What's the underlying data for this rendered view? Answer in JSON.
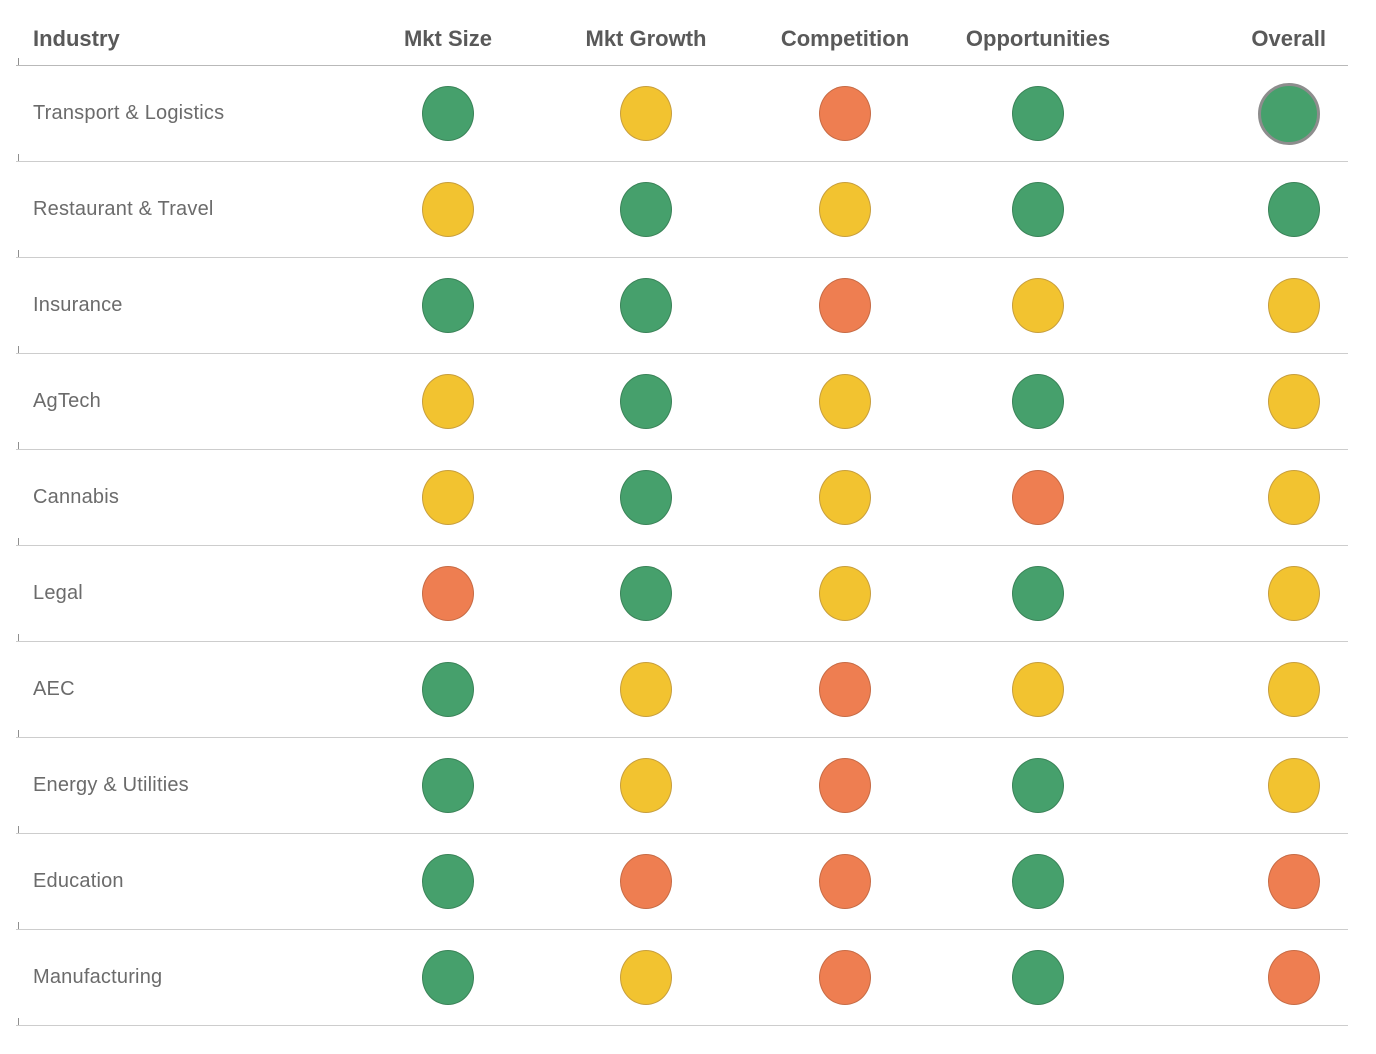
{
  "table": {
    "columns": [
      {
        "key": "industry",
        "label": "Industry"
      },
      {
        "key": "mkt_size",
        "label": "Mkt Size"
      },
      {
        "key": "mkt_growth",
        "label": "Mkt Growth"
      },
      {
        "key": "competition",
        "label": "Competition"
      },
      {
        "key": "opportunities",
        "label": "Opportunities"
      },
      {
        "key": "overall",
        "label": "Overall"
      }
    ],
    "rating_colors": {
      "good": "#46a06c",
      "medium": "#f2c330",
      "poor": "#ee7e51"
    },
    "highlight_ring_color": "#8d8d8d",
    "rows": [
      {
        "industry": "Transport & Logistics",
        "ratings": {
          "mkt_size": "good",
          "mkt_growth": "medium",
          "competition": "poor",
          "opportunities": "good",
          "overall": "good"
        },
        "overall_ring": true
      },
      {
        "industry": "Restaurant & Travel",
        "ratings": {
          "mkt_size": "medium",
          "mkt_growth": "good",
          "competition": "medium",
          "opportunities": "good",
          "overall": "good"
        },
        "overall_ring": false
      },
      {
        "industry": "Insurance",
        "ratings": {
          "mkt_size": "good",
          "mkt_growth": "good",
          "competition": "poor",
          "opportunities": "medium",
          "overall": "medium"
        },
        "overall_ring": false
      },
      {
        "industry": "AgTech",
        "ratings": {
          "mkt_size": "medium",
          "mkt_growth": "good",
          "competition": "medium",
          "opportunities": "good",
          "overall": "medium"
        },
        "overall_ring": false
      },
      {
        "industry": "Cannabis",
        "ratings": {
          "mkt_size": "medium",
          "mkt_growth": "good",
          "competition": "medium",
          "opportunities": "poor",
          "overall": "medium"
        },
        "overall_ring": false
      },
      {
        "industry": "Legal",
        "ratings": {
          "mkt_size": "poor",
          "mkt_growth": "good",
          "competition": "medium",
          "opportunities": "good",
          "overall": "medium"
        },
        "overall_ring": false
      },
      {
        "industry": "AEC",
        "ratings": {
          "mkt_size": "good",
          "mkt_growth": "medium",
          "competition": "poor",
          "opportunities": "medium",
          "overall": "medium"
        },
        "overall_ring": false
      },
      {
        "industry": "Energy & Utilities",
        "ratings": {
          "mkt_size": "good",
          "mkt_growth": "medium",
          "competition": "poor",
          "opportunities": "good",
          "overall": "medium"
        },
        "overall_ring": false
      },
      {
        "industry": "Education",
        "ratings": {
          "mkt_size": "good",
          "mkt_growth": "poor",
          "competition": "poor",
          "opportunities": "good",
          "overall": "poor"
        },
        "overall_ring": false
      },
      {
        "industry": "Manufacturing",
        "ratings": {
          "mkt_size": "good",
          "mkt_growth": "medium",
          "competition": "poor",
          "opportunities": "good",
          "overall": "poor"
        },
        "overall_ring": false
      }
    ]
  },
  "chart_data": {
    "type": "table",
    "title": "",
    "columns": [
      "Industry",
      "Mkt Size",
      "Mkt Growth",
      "Competition",
      "Opportunities",
      "Overall"
    ],
    "rating_scale": {
      "good": "green",
      "medium": "yellow",
      "poor": "orange"
    },
    "rows": [
      [
        "Transport & Logistics",
        "good",
        "medium",
        "poor",
        "good",
        "good"
      ],
      [
        "Restaurant & Travel",
        "medium",
        "good",
        "medium",
        "good",
        "good"
      ],
      [
        "Insurance",
        "good",
        "good",
        "poor",
        "medium",
        "medium"
      ],
      [
        "AgTech",
        "medium",
        "good",
        "medium",
        "good",
        "medium"
      ],
      [
        "Cannabis",
        "medium",
        "good",
        "medium",
        "poor",
        "medium"
      ],
      [
        "Legal",
        "poor",
        "good",
        "medium",
        "good",
        "medium"
      ],
      [
        "AEC",
        "good",
        "medium",
        "poor",
        "medium",
        "medium"
      ],
      [
        "Energy & Utilities",
        "good",
        "medium",
        "poor",
        "good",
        "medium"
      ],
      [
        "Education",
        "good",
        "poor",
        "poor",
        "good",
        "poor"
      ],
      [
        "Manufacturing",
        "good",
        "medium",
        "poor",
        "good",
        "poor"
      ]
    ],
    "layout": {
      "grid": "horizontal-row-separators",
      "legend": "none",
      "highlighted_cell": [
        "Transport & Logistics",
        "Overall"
      ]
    }
  }
}
